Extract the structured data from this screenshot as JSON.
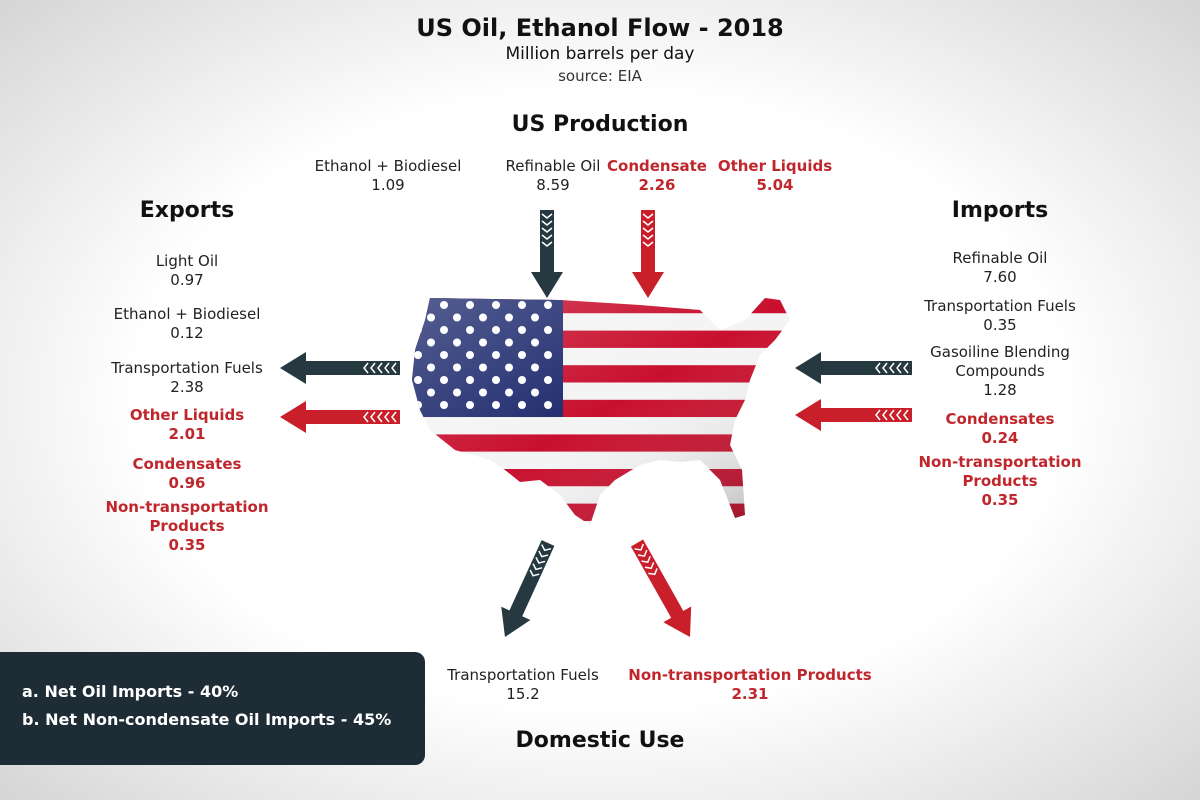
{
  "header": {
    "title": "US Oil, Ethanol Flow - 2018",
    "subtitle": "Million barrels per day",
    "source": "source: EIA"
  },
  "production": {
    "heading": "US Production",
    "items": [
      {
        "label": "Ethanol + Biodiesel",
        "value": "1.09",
        "color": "#222222"
      },
      {
        "label": "Refinable Oil",
        "value": "8.59",
        "color": "#222222"
      },
      {
        "label": "Condensate",
        "value": "2.26",
        "color": "#c0272d"
      },
      {
        "label": "Other Liquids",
        "value": "5.04",
        "color": "#c0272d"
      }
    ]
  },
  "exports": {
    "heading": "Exports",
    "items": [
      {
        "label": "Light Oil",
        "value": "0.97",
        "color": "#222222"
      },
      {
        "label": "Ethanol + Biodiesel",
        "value": "0.12",
        "color": "#222222"
      },
      {
        "label": "Transportation Fuels",
        "value": "2.38",
        "color": "#222222"
      },
      {
        "label": "Other Liquids",
        "value": "2.01",
        "color": "#c0272d"
      },
      {
        "label": "Condensates",
        "value": "0.96",
        "color": "#c0272d"
      },
      {
        "label": "Non-transportation Products",
        "value": "0.35",
        "color": "#c0272d"
      }
    ]
  },
  "imports": {
    "heading": "Imports",
    "items": [
      {
        "label": "Refinable Oil",
        "value": "7.60",
        "color": "#222222"
      },
      {
        "label": "Transportation Fuels",
        "value": "0.35",
        "color": "#222222"
      },
      {
        "label": "Gasoiline Blending Compounds",
        "value": "1.28",
        "color": "#222222"
      },
      {
        "label": "Condensates",
        "value": "0.24",
        "color": "#c0272d"
      },
      {
        "label": "Non-transportation Products",
        "value": "0.35",
        "color": "#c0272d"
      }
    ]
  },
  "domestic_use": {
    "heading": "Domestic Use",
    "items": [
      {
        "label": "Transportation Fuels",
        "value": "15.2",
        "color": "#222222"
      },
      {
        "label": "Non-transportation Products",
        "value": "2.31",
        "color": "#c0272d"
      }
    ]
  },
  "notes": [
    "a. Net Oil Imports - 40%",
    "b. Net Non-condensate Oil Imports - 45%"
  ]
}
